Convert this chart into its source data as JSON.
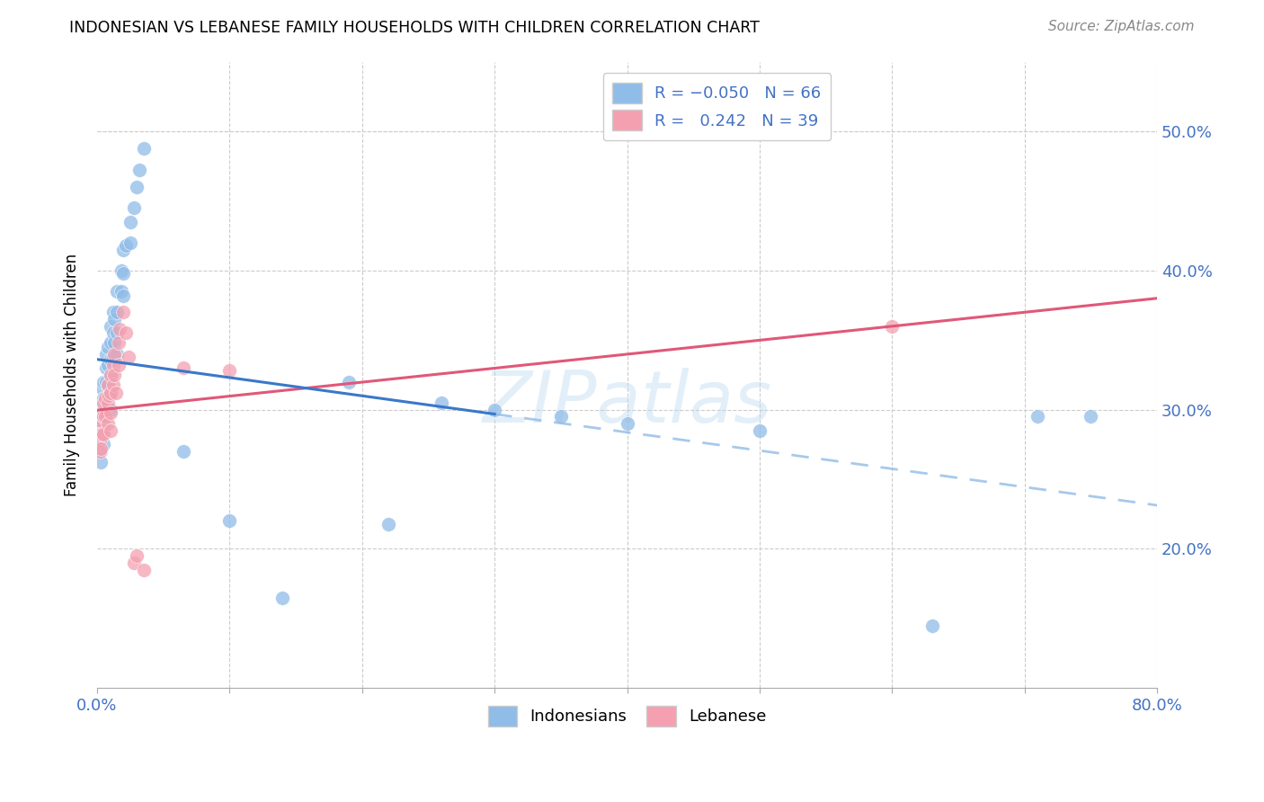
{
  "title": "INDONESIAN VS LEBANESE FAMILY HOUSEHOLDS WITH CHILDREN CORRELATION CHART",
  "source": "Source: ZipAtlas.com",
  "ylabel": "Family Households with Children",
  "watermark": "ZIPatlas",
  "xlim": [
    0.0,
    0.8
  ],
  "ylim": [
    0.1,
    0.55
  ],
  "x_ticks": [
    0.0,
    0.1,
    0.2,
    0.3,
    0.4,
    0.5,
    0.6,
    0.7,
    0.8
  ],
  "y_ticks": [
    0.2,
    0.3,
    0.4,
    0.5
  ],
  "legend_bottom": [
    "Indonesians",
    "Lebanese"
  ],
  "indonesian_color": "#90bce8",
  "lebanese_color": "#f4a0b0",
  "indonesian_line_color": "#3a78c9",
  "lebanese_line_color": "#e05878",
  "indonesian_x": [
    0.002,
    0.002,
    0.002,
    0.002,
    0.002,
    0.003,
    0.003,
    0.003,
    0.003,
    0.003,
    0.004,
    0.004,
    0.004,
    0.004,
    0.005,
    0.005,
    0.005,
    0.005,
    0.005,
    0.007,
    0.007,
    0.007,
    0.007,
    0.008,
    0.008,
    0.008,
    0.01,
    0.01,
    0.01,
    0.01,
    0.01,
    0.01,
    0.012,
    0.012,
    0.012,
    0.013,
    0.013,
    0.015,
    0.015,
    0.015,
    0.015,
    0.018,
    0.018,
    0.02,
    0.02,
    0.02,
    0.022,
    0.025,
    0.025,
    0.028,
    0.03,
    0.032,
    0.035,
    0.065,
    0.1,
    0.14,
    0.19,
    0.22,
    0.26,
    0.3,
    0.35,
    0.4,
    0.5,
    0.63,
    0.71,
    0.75
  ],
  "indonesian_y": [
    0.295,
    0.288,
    0.282,
    0.276,
    0.27,
    0.295,
    0.286,
    0.278,
    0.27,
    0.262,
    0.315,
    0.305,
    0.296,
    0.285,
    0.32,
    0.308,
    0.298,
    0.29,
    0.275,
    0.34,
    0.33,
    0.32,
    0.295,
    0.345,
    0.332,
    0.318,
    0.36,
    0.348,
    0.336,
    0.324,
    0.312,
    0.3,
    0.37,
    0.355,
    0.338,
    0.365,
    0.348,
    0.385,
    0.37,
    0.355,
    0.34,
    0.4,
    0.385,
    0.415,
    0.398,
    0.382,
    0.418,
    0.435,
    0.42,
    0.445,
    0.46,
    0.472,
    0.488,
    0.27,
    0.22,
    0.165,
    0.32,
    0.218,
    0.305,
    0.3,
    0.295,
    0.29,
    0.285,
    0.145,
    0.295,
    0.295
  ],
  "lebanese_x": [
    0.002,
    0.002,
    0.002,
    0.003,
    0.003,
    0.003,
    0.004,
    0.004,
    0.005,
    0.005,
    0.005,
    0.006,
    0.006,
    0.008,
    0.008,
    0.008,
    0.009,
    0.01,
    0.01,
    0.01,
    0.01,
    0.012,
    0.012,
    0.013,
    0.013,
    0.014,
    0.016,
    0.016,
    0.017,
    0.02,
    0.022,
    0.024,
    0.028,
    0.03,
    0.035,
    0.065,
    0.1,
    0.6
  ],
  "lebanese_y": [
    0.285,
    0.278,
    0.27,
    0.292,
    0.282,
    0.272,
    0.296,
    0.283,
    0.305,
    0.295,
    0.282,
    0.308,
    0.295,
    0.318,
    0.305,
    0.29,
    0.31,
    0.325,
    0.312,
    0.298,
    0.285,
    0.332,
    0.318,
    0.34,
    0.325,
    0.312,
    0.348,
    0.332,
    0.358,
    0.37,
    0.355,
    0.338,
    0.19,
    0.195,
    0.185,
    0.33,
    0.328,
    0.36
  ]
}
